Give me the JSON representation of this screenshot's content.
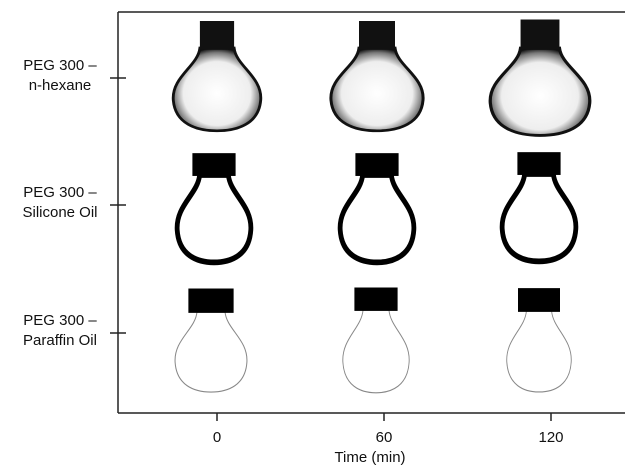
{
  "figure": {
    "rows": [
      "PEG 300 –\nn-hexane",
      "PEG 300 –\nSilicone Oil",
      "PEG 300 –\nParaffin Oil"
    ],
    "x_ticks": [
      "0",
      "60",
      "120"
    ],
    "x_label": "Time (min)"
  }
}
